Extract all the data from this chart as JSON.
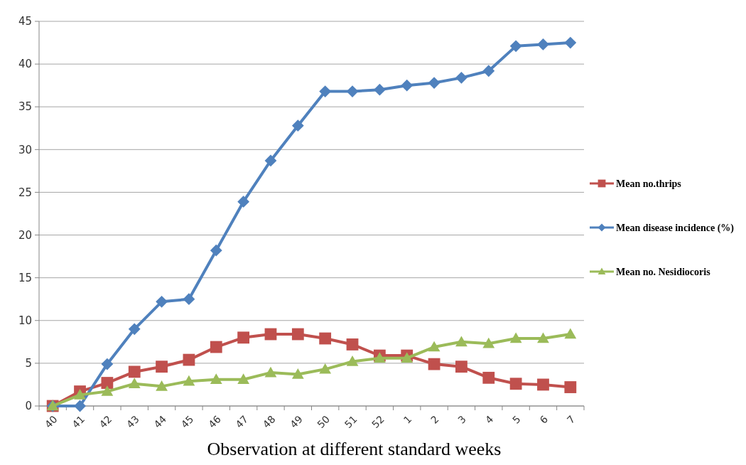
{
  "chart_data": {
    "type": "line",
    "xlabel": "Observation at different standard weeks",
    "categories": [
      "40",
      "41",
      "42",
      "43",
      "44",
      "45",
      "46",
      "47",
      "48",
      "49",
      "50",
      "51",
      "52",
      "1",
      "2",
      "3",
      "4",
      "5",
      "6",
      "7"
    ],
    "series": [
      {
        "name": "Mean no.thrips",
        "color": "#c0504d",
        "marker": "square",
        "values": [
          0,
          1.7,
          2.7,
          4.0,
          4.6,
          5.4,
          6.9,
          8.0,
          8.4,
          8.4,
          7.9,
          7.2,
          5.9,
          5.9,
          4.9,
          4.6,
          3.3,
          2.6,
          2.5,
          2.2
        ]
      },
      {
        "name": "Mean disease incidence (%)",
        "color": "#4f81bd",
        "marker": "diamond",
        "values": [
          0,
          0,
          4.9,
          9.0,
          12.2,
          12.5,
          18.2,
          23.9,
          28.7,
          32.8,
          36.8,
          36.8,
          37.0,
          37.5,
          37.8,
          38.4,
          39.2,
          42.1,
          42.3,
          42.5
        ]
      },
      {
        "name": "Mean no. Nesidiocoris",
        "color": "#9bbb59",
        "marker": "triangle",
        "values": [
          0,
          1.3,
          1.7,
          2.6,
          2.3,
          2.9,
          3.1,
          3.1,
          3.9,
          3.7,
          4.3,
          5.2,
          5.6,
          5.6,
          6.9,
          7.5,
          7.3,
          7.9,
          7.9,
          8.4
        ]
      }
    ],
    "ylim": [
      0,
      45
    ],
    "yticks": [
      0,
      5,
      10,
      15,
      20,
      25,
      30,
      35,
      40,
      45
    ],
    "grid": "y",
    "legend": "right"
  }
}
